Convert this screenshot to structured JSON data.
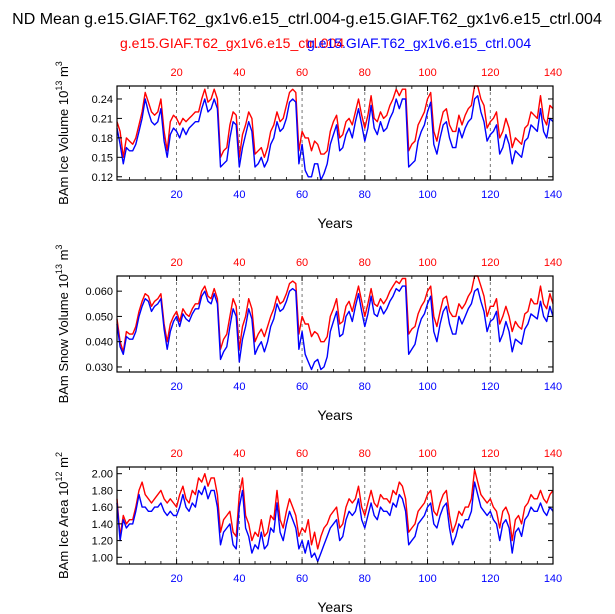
{
  "title": "ND Mean g.e15.GIAF.T62_gx1v6.e15_ctrl.004-g.e15.GIAF.T62_gx1v6.e15_ctrl.004",
  "legend": {
    "red_label": "g.e15.GIAF.T62_gx1v6.e15_ctrl.004",
    "blue_label": "g.e15.GIAF.T62_gx1v6.e15_ctrl.004"
  },
  "colors": {
    "red": "#ff0000",
    "blue": "#0000ff",
    "axis": "#000000",
    "grid": "#555555"
  },
  "chart_data": [
    {
      "type": "line",
      "xlabel": "Years",
      "ylabel_main": "BAm Ice Volume 10",
      "ylabel_exp": "13",
      "ylabel_unit": " m",
      "ylabel_unit_exp": "3",
      "xlim": [
        1,
        140
      ],
      "ylim": [
        0.115,
        0.26
      ],
      "yticks": [
        "0.12",
        "0.15",
        "0.18",
        "0.21",
        "0.24"
      ],
      "xticks_bottom": [
        "20",
        "40",
        "60",
        "80",
        "100",
        "120",
        "140"
      ],
      "xticks_top": [
        "20",
        "40",
        "60",
        "80",
        "100",
        "120",
        "140"
      ],
      "vlines": [
        20,
        40,
        60,
        80,
        100,
        120
      ],
      "series": [
        {
          "name": "red",
          "color": "#ff0000",
          "values": [
            0.205,
            0.19,
            0.15,
            0.18,
            0.175,
            0.17,
            0.18,
            0.2,
            0.22,
            0.25,
            0.235,
            0.22,
            0.215,
            0.22,
            0.24,
            0.19,
            0.16,
            0.205,
            0.215,
            0.21,
            0.2,
            0.21,
            0.205,
            0.21,
            0.215,
            0.22,
            0.22,
            0.24,
            0.255,
            0.235,
            0.24,
            0.255,
            0.24,
            0.15,
            0.16,
            0.165,
            0.2,
            0.22,
            0.215,
            0.15,
            0.185,
            0.2,
            0.22,
            0.21,
            0.155,
            0.16,
            0.165,
            0.15,
            0.165,
            0.19,
            0.2,
            0.22,
            0.205,
            0.21,
            0.23,
            0.25,
            0.255,
            0.25,
            0.16,
            0.19,
            0.18,
            0.18,
            0.16,
            0.175,
            0.17,
            0.155,
            0.155,
            0.16,
            0.19,
            0.205,
            0.215,
            0.18,
            0.185,
            0.205,
            0.21,
            0.2,
            0.22,
            0.24,
            0.215,
            0.195,
            0.215,
            0.245,
            0.21,
            0.205,
            0.22,
            0.21,
            0.215,
            0.23,
            0.24,
            0.255,
            0.245,
            0.255,
            0.255,
            0.16,
            0.17,
            0.175,
            0.2,
            0.21,
            0.22,
            0.24,
            0.25,
            0.19,
            0.175,
            0.2,
            0.22,
            0.225,
            0.2,
            0.19,
            0.19,
            0.215,
            0.2,
            0.215,
            0.225,
            0.23,
            0.26,
            0.26,
            0.24,
            0.23,
            0.195,
            0.205,
            0.21,
            0.22,
            0.18,
            0.19,
            0.21,
            0.195,
            0.165,
            0.18,
            0.175,
            0.17,
            0.195,
            0.2,
            0.22,
            0.215,
            0.21,
            0.245,
            0.21,
            0.2,
            0.23,
            0.225
          ],
          "note": "140 yearly values"
        },
        {
          "name": "blue",
          "color": "#0000ff",
          "values": [
            0.195,
            0.17,
            0.14,
            0.165,
            0.16,
            0.16,
            0.17,
            0.19,
            0.21,
            0.24,
            0.22,
            0.205,
            0.2,
            0.205,
            0.225,
            0.175,
            0.15,
            0.185,
            0.195,
            0.19,
            0.18,
            0.195,
            0.185,
            0.195,
            0.2,
            0.205,
            0.205,
            0.225,
            0.24,
            0.22,
            0.225,
            0.24,
            0.225,
            0.135,
            0.14,
            0.145,
            0.18,
            0.205,
            0.2,
            0.135,
            0.165,
            0.185,
            0.205,
            0.19,
            0.135,
            0.14,
            0.15,
            0.135,
            0.145,
            0.17,
            0.18,
            0.205,
            0.19,
            0.195,
            0.21,
            0.235,
            0.24,
            0.235,
            0.14,
            0.17,
            0.13,
            0.12,
            0.12,
            0.14,
            0.14,
            0.115,
            0.125,
            0.14,
            0.17,
            0.185,
            0.2,
            0.16,
            0.165,
            0.185,
            0.195,
            0.18,
            0.205,
            0.225,
            0.2,
            0.175,
            0.195,
            0.23,
            0.195,
            0.185,
            0.205,
            0.19,
            0.195,
            0.21,
            0.22,
            0.24,
            0.225,
            0.24,
            0.24,
            0.135,
            0.14,
            0.145,
            0.175,
            0.19,
            0.2,
            0.22,
            0.235,
            0.17,
            0.155,
            0.18,
            0.2,
            0.205,
            0.18,
            0.165,
            0.165,
            0.195,
            0.18,
            0.195,
            0.205,
            0.21,
            0.24,
            0.245,
            0.22,
            0.205,
            0.175,
            0.185,
            0.19,
            0.2,
            0.155,
            0.165,
            0.185,
            0.17,
            0.14,
            0.16,
            0.155,
            0.15,
            0.175,
            0.18,
            0.2,
            0.195,
            0.19,
            0.225,
            0.19,
            0.18,
            0.21,
            0.205
          ]
        }
      ]
    },
    {
      "type": "line",
      "xlabel": "Years",
      "ylabel_main": "BAm Snow Volume 10",
      "ylabel_exp": "13",
      "ylabel_unit": " m",
      "ylabel_unit_exp": "3",
      "xlim": [
        1,
        140
      ],
      "ylim": [
        0.028,
        0.066
      ],
      "yticks": [
        "0.030",
        "0.040",
        "0.050",
        "0.060"
      ],
      "xticks_bottom": [
        "20",
        "40",
        "60",
        "80",
        "100",
        "120",
        "140"
      ],
      "xticks_top": [
        "20",
        "40",
        "60",
        "80",
        "100",
        "120",
        "140"
      ],
      "vlines": [
        20,
        40,
        60,
        80,
        100,
        120
      ],
      "series": [
        {
          "name": "red",
          "color": "#ff0000",
          "values": [
            0.049,
            0.04,
            0.036,
            0.044,
            0.043,
            0.043,
            0.046,
            0.052,
            0.056,
            0.059,
            0.058,
            0.054,
            0.056,
            0.057,
            0.059,
            0.047,
            0.04,
            0.047,
            0.05,
            0.052,
            0.048,
            0.053,
            0.051,
            0.05,
            0.053,
            0.055,
            0.055,
            0.06,
            0.062,
            0.058,
            0.057,
            0.061,
            0.057,
            0.037,
            0.041,
            0.043,
            0.05,
            0.057,
            0.054,
            0.037,
            0.046,
            0.05,
            0.057,
            0.053,
            0.04,
            0.043,
            0.045,
            0.042,
            0.046,
            0.05,
            0.053,
            0.058,
            0.055,
            0.056,
            0.059,
            0.063,
            0.064,
            0.063,
            0.043,
            0.05,
            0.047,
            0.047,
            0.042,
            0.044,
            0.043,
            0.04,
            0.04,
            0.042,
            0.05,
            0.053,
            0.057,
            0.047,
            0.048,
            0.054,
            0.056,
            0.052,
            0.057,
            0.062,
            0.056,
            0.05,
            0.055,
            0.061,
            0.055,
            0.054,
            0.057,
            0.055,
            0.057,
            0.06,
            0.062,
            0.064,
            0.063,
            0.065,
            0.065,
            0.043,
            0.045,
            0.046,
            0.051,
            0.054,
            0.056,
            0.06,
            0.062,
            0.05,
            0.046,
            0.052,
            0.057,
            0.058,
            0.052,
            0.05,
            0.05,
            0.055,
            0.053,
            0.055,
            0.058,
            0.06,
            0.066,
            0.066,
            0.062,
            0.058,
            0.05,
            0.054,
            0.054,
            0.057,
            0.047,
            0.05,
            0.054,
            0.05,
            0.044,
            0.048,
            0.046,
            0.045,
            0.051,
            0.052,
            0.057,
            0.055,
            0.055,
            0.062,
            0.055,
            0.053,
            0.059,
            0.055
          ]
        },
        {
          "name": "blue",
          "color": "#0000ff",
          "values": [
            0.047,
            0.038,
            0.035,
            0.042,
            0.041,
            0.041,
            0.044,
            0.05,
            0.054,
            0.057,
            0.056,
            0.052,
            0.054,
            0.055,
            0.057,
            0.045,
            0.037,
            0.044,
            0.048,
            0.05,
            0.046,
            0.051,
            0.049,
            0.048,
            0.051,
            0.053,
            0.053,
            0.058,
            0.06,
            0.056,
            0.055,
            0.059,
            0.055,
            0.033,
            0.036,
            0.038,
            0.046,
            0.053,
            0.05,
            0.032,
            0.041,
            0.046,
            0.053,
            0.049,
            0.035,
            0.038,
            0.04,
            0.036,
            0.04,
            0.046,
            0.049,
            0.055,
            0.052,
            0.053,
            0.056,
            0.06,
            0.061,
            0.06,
            0.037,
            0.044,
            0.035,
            0.032,
            0.029,
            0.032,
            0.033,
            0.029,
            0.03,
            0.034,
            0.044,
            0.048,
            0.052,
            0.042,
            0.043,
            0.05,
            0.052,
            0.048,
            0.054,
            0.059,
            0.052,
            0.046,
            0.051,
            0.058,
            0.051,
            0.05,
            0.054,
            0.051,
            0.053,
            0.056,
            0.058,
            0.061,
            0.06,
            0.062,
            0.062,
            0.035,
            0.037,
            0.039,
            0.045,
            0.049,
            0.051,
            0.055,
            0.058,
            0.044,
            0.04,
            0.047,
            0.052,
            0.054,
            0.047,
            0.043,
            0.043,
            0.05,
            0.047,
            0.05,
            0.053,
            0.055,
            0.06,
            0.061,
            0.056,
            0.052,
            0.044,
            0.048,
            0.049,
            0.052,
            0.04,
            0.043,
            0.048,
            0.044,
            0.036,
            0.041,
            0.04,
            0.039,
            0.045,
            0.047,
            0.051,
            0.05,
            0.049,
            0.056,
            0.05,
            0.048,
            0.054,
            0.05
          ]
        }
      ]
    },
    {
      "type": "line",
      "xlabel": "Years",
      "ylabel_main": "BAm Ice Area 10",
      "ylabel_exp": "12",
      "ylabel_unit": " m",
      "ylabel_unit_exp": "2",
      "xlim": [
        1,
        140
      ],
      "ylim": [
        0.92,
        2.08
      ],
      "yticks": [
        "1.00",
        "1.20",
        "1.40",
        "1.60",
        "1.80",
        "2.00"
      ],
      "xticks_bottom": [
        "20",
        "40",
        "60",
        "80",
        "100",
        "120",
        "140"
      ],
      "xticks_top": [
        "20",
        "40",
        "60",
        "80",
        "100",
        "120",
        "140"
      ],
      "vlines": [
        20,
        40,
        60,
        80,
        100,
        120
      ],
      "series": [
        {
          "name": "red",
          "color": "#ff0000",
          "values": [
            1.7,
            1.25,
            1.5,
            1.4,
            1.45,
            1.45,
            1.6,
            1.8,
            1.9,
            1.75,
            1.7,
            1.65,
            1.7,
            1.75,
            1.8,
            1.7,
            1.65,
            1.7,
            1.65,
            1.6,
            1.75,
            1.85,
            1.7,
            1.65,
            1.8,
            1.75,
            1.95,
            1.9,
            2.0,
            1.85,
            1.95,
            1.95,
            1.75,
            1.3,
            1.45,
            1.5,
            1.55,
            1.3,
            1.25,
            1.75,
            1.95,
            1.5,
            1.4,
            1.2,
            1.3,
            1.25,
            1.45,
            1.25,
            1.3,
            1.5,
            1.45,
            1.8,
            1.45,
            1.35,
            1.55,
            1.7,
            1.6,
            1.5,
            1.25,
            1.35,
            1.3,
            1.45,
            1.15,
            1.3,
            1.1,
            1.25,
            1.35,
            1.4,
            1.5,
            1.55,
            1.6,
            1.35,
            1.4,
            1.6,
            1.7,
            1.65,
            1.7,
            1.85,
            1.6,
            1.5,
            1.65,
            1.8,
            1.65,
            1.6,
            1.75,
            1.7,
            1.7,
            1.65,
            1.8,
            1.75,
            1.9,
            1.85,
            1.7,
            1.3,
            1.35,
            1.4,
            1.55,
            1.6,
            1.65,
            1.75,
            1.8,
            1.55,
            1.5,
            1.65,
            1.75,
            1.8,
            1.5,
            1.3,
            1.4,
            1.55,
            1.5,
            1.6,
            1.6,
            1.7,
            2.05,
            1.9,
            1.75,
            1.7,
            1.65,
            1.7,
            1.6,
            1.55,
            1.35,
            1.55,
            1.6,
            1.5,
            1.2,
            1.45,
            1.5,
            1.4,
            1.6,
            1.65,
            1.75,
            1.7,
            1.7,
            1.8,
            1.7,
            1.65,
            1.75,
            1.8
          ]
        },
        {
          "name": "blue",
          "color": "#0000ff",
          "values": [
            1.65,
            1.2,
            1.45,
            1.35,
            1.4,
            1.4,
            1.55,
            1.75,
            1.6,
            1.6,
            1.55,
            1.55,
            1.6,
            1.6,
            1.65,
            1.55,
            1.5,
            1.55,
            1.5,
            1.5,
            1.6,
            1.75,
            1.6,
            1.55,
            1.65,
            1.6,
            1.8,
            1.75,
            1.85,
            1.7,
            1.8,
            1.8,
            1.6,
            1.15,
            1.3,
            1.35,
            1.4,
            1.15,
            1.1,
            1.6,
            1.8,
            1.35,
            1.25,
            1.05,
            1.15,
            1.1,
            1.3,
            1.1,
            1.15,
            1.35,
            1.3,
            1.65,
            1.3,
            1.2,
            1.4,
            1.55,
            1.45,
            1.35,
            1.1,
            1.2,
            1.05,
            1.2,
            1.0,
            1.05,
            0.95,
            1.05,
            1.15,
            1.25,
            1.35,
            1.4,
            1.45,
            1.2,
            1.25,
            1.45,
            1.55,
            1.5,
            1.55,
            1.7,
            1.45,
            1.35,
            1.5,
            1.65,
            1.5,
            1.45,
            1.6,
            1.55,
            1.55,
            1.5,
            1.65,
            1.6,
            1.75,
            1.7,
            1.55,
            1.15,
            1.2,
            1.25,
            1.4,
            1.45,
            1.5,
            1.6,
            1.65,
            1.4,
            1.35,
            1.5,
            1.6,
            1.65,
            1.35,
            1.15,
            1.25,
            1.4,
            1.35,
            1.45,
            1.45,
            1.55,
            1.9,
            1.75,
            1.6,
            1.55,
            1.5,
            1.55,
            1.45,
            1.4,
            1.2,
            1.4,
            1.45,
            1.35,
            1.05,
            1.3,
            1.35,
            1.25,
            1.45,
            1.5,
            1.6,
            1.55,
            1.55,
            1.65,
            1.55,
            1.5,
            1.6,
            1.55
          ]
        }
      ]
    }
  ]
}
